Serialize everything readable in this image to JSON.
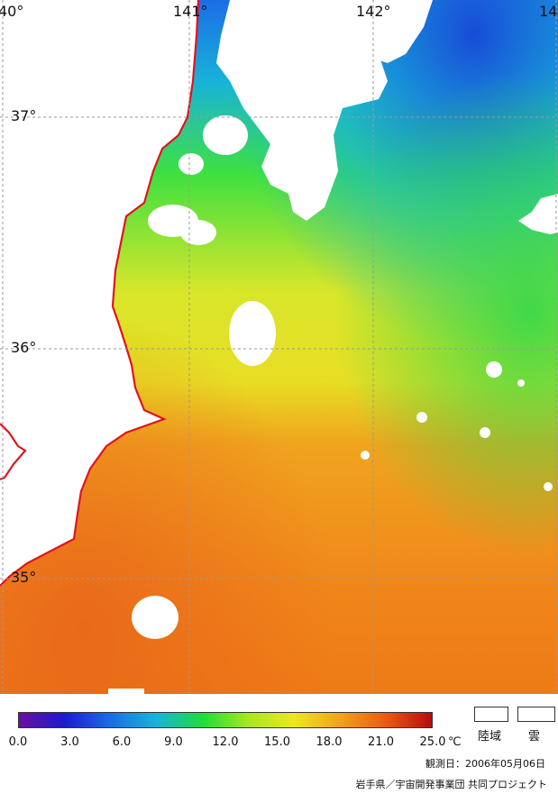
{
  "map": {
    "longitude_labels": [
      "40°",
      "141°",
      "142°",
      "14"
    ],
    "latitude_labels": [
      "37°",
      "36°",
      "35°"
    ],
    "coastline_color": "#e0141e",
    "land_color": "#ffffff",
    "cloud_color": "#ffffff",
    "grid_color": "#9a9a9a"
  },
  "legend": {
    "ticks": [
      "0.0",
      "3.0",
      "6.0",
      "9.0",
      "12.0",
      "15.0",
      "18.0",
      "21.0",
      "25.0"
    ],
    "unit": "℃",
    "colors": [
      "#6a0fa0",
      "#1a1ad0",
      "#1a6ee6",
      "#18b4d8",
      "#1edc3c",
      "#a8e81e",
      "#ece81c",
      "#f2a21c",
      "#ea5a12",
      "#b40c0c"
    ],
    "land_label": "陸域",
    "cloud_label": "雲"
  },
  "observation_date": "観測日：2006年05月06日",
  "credit": "岩手県／宇宙開発事業団  共同プロジェクト"
}
